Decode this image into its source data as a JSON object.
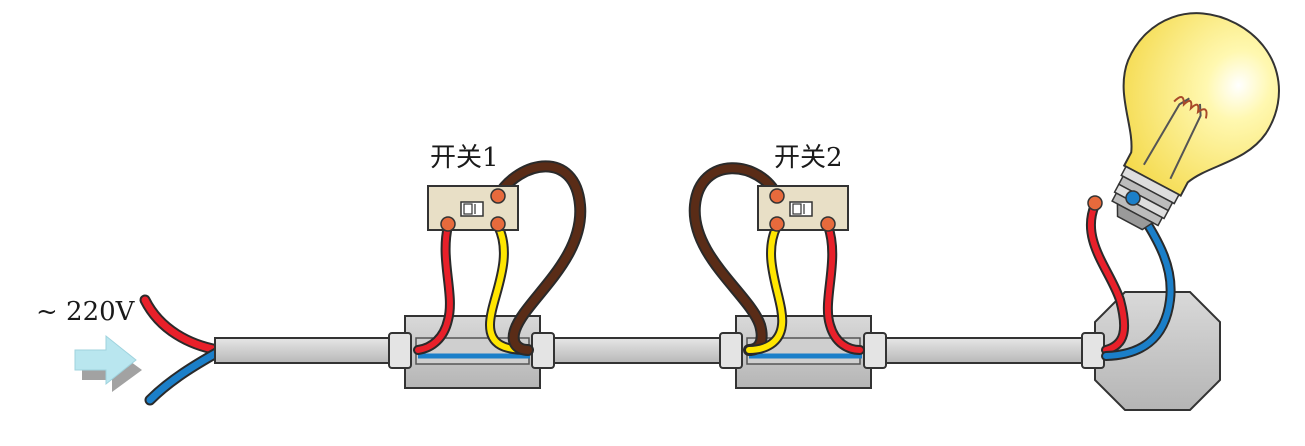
{
  "labels": {
    "supply": "~ 220V",
    "switch1": "开关1",
    "switch2": "开关2"
  },
  "colors": {
    "red_wire": "#e8202a",
    "blue_wire": "#1b7fc9",
    "yellow_wire": "#ffe600",
    "brown_wire": "#5a2c17",
    "conduit": "#d3d3d3",
    "switch_plate": "#e8dfc6",
    "terminal": "#e76a3c",
    "bulb_glass": "#fff59a",
    "arrow": "#b9e6ef"
  },
  "icons": [
    "arrow-icon",
    "switch-toggle-icon",
    "light-bulb-icon"
  ]
}
